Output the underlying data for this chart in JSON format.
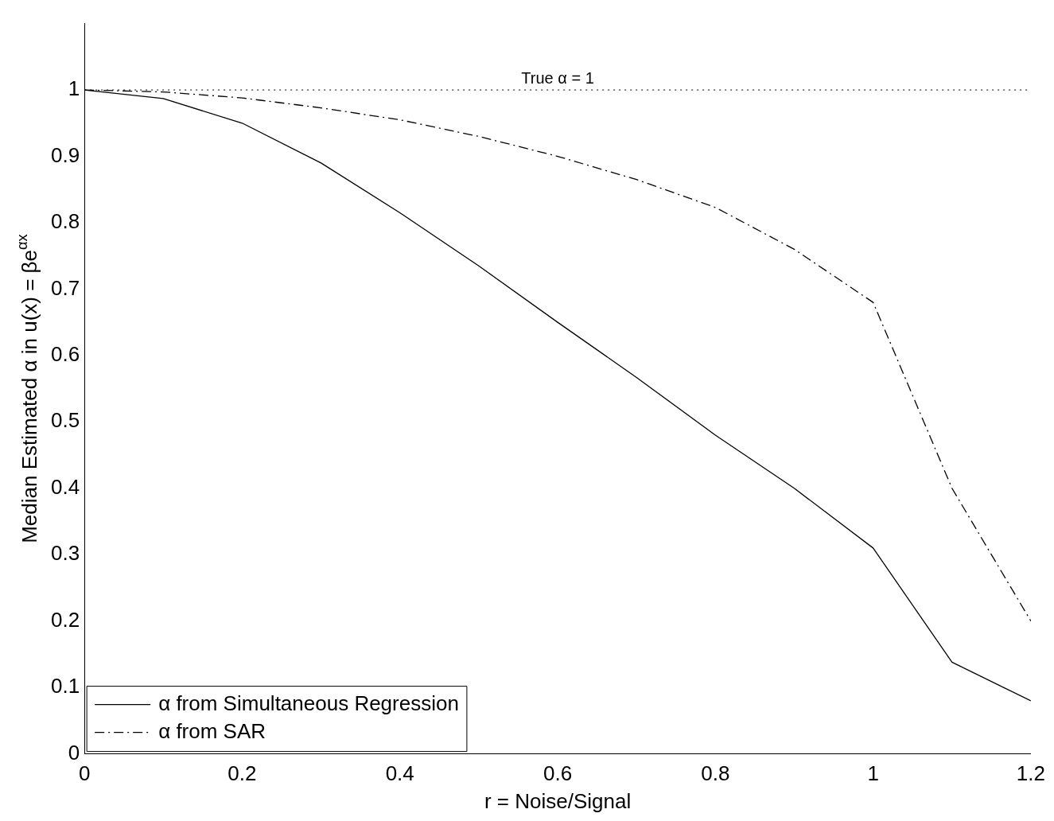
{
  "chart_data": {
    "type": "line",
    "xlabel": "r = Noise/Signal",
    "ylabel": "Median Estimated α in u(x) = βe$^{αx}$",
    "x": [
      0,
      0.1,
      0.2,
      0.3,
      0.4,
      0.5,
      0.6,
      0.7,
      0.8,
      0.9,
      1.0,
      1.1,
      1.2
    ],
    "series": [
      {
        "name": "α from Simultaneous Regression",
        "color": "#000000",
        "line_style": "solid",
        "values": [
          1.0,
          0.987,
          0.95,
          0.89,
          0.815,
          0.735,
          0.65,
          0.567,
          0.48,
          0.4,
          0.31,
          0.138,
          0.08
        ]
      },
      {
        "name": "α from SAR",
        "color": "#000000",
        "line_style": "dashed",
        "values": [
          1.0,
          0.997,
          0.988,
          0.973,
          0.955,
          0.93,
          0.9,
          0.865,
          0.823,
          0.76,
          0.68,
          0.4,
          0.2
        ]
      }
    ],
    "xlim": [
      0,
      1.2
    ],
    "xticks": [
      0,
      0.2,
      0.4,
      0.6,
      0.8,
      1,
      1.2
    ],
    "ylim": [
      0,
      1.1
    ],
    "yticks": [
      0,
      0.1,
      0.2,
      0.3,
      0.4,
      0.5,
      0.6,
      0.7,
      0.8,
      0.9,
      1
    ],
    "ref_lines": [
      {
        "axis": "y",
        "value": 1,
        "label": "True α = 1",
        "color": "#000000",
        "line_style": "dotted"
      }
    ],
    "grid": false,
    "legend": "bottom left",
    "marker": "none"
  }
}
